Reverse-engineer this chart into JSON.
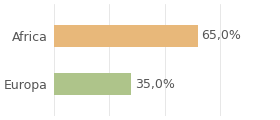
{
  "categories": [
    "Europa",
    "Africa"
  ],
  "values": [
    35.0,
    65.0
  ],
  "bar_colors": [
    "#aec48a",
    "#e8b87a"
  ],
  "label_texts": [
    "35,0%",
    "65,0%"
  ],
  "xlim": [
    0,
    100
  ],
  "background_color": "#ffffff",
  "bar_height": 0.45,
  "label_fontsize": 9,
  "category_fontsize": 9
}
